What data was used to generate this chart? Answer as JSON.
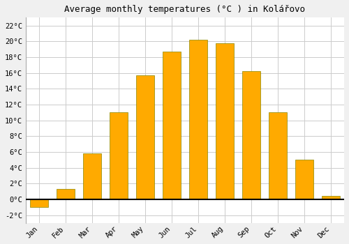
{
  "months": [
    "Jan",
    "Feb",
    "Mar",
    "Apr",
    "May",
    "Jun",
    "Jul",
    "Aug",
    "Sep",
    "Oct",
    "Nov",
    "Dec"
  ],
  "temperatures": [
    -1.0,
    1.3,
    5.8,
    11.0,
    15.7,
    18.7,
    20.2,
    19.8,
    16.2,
    11.0,
    5.0,
    0.4
  ],
  "bar_color": "#FFAA00",
  "bar_edge_color": "#888800",
  "title": "Average monthly temperatures (°C ) in Kolářovo",
  "ylim": [
    -3,
    23
  ],
  "yticks": [
    -2,
    0,
    2,
    4,
    6,
    8,
    10,
    12,
    14,
    16,
    18,
    20,
    22
  ],
  "grid_color": "#cccccc",
  "plot_bg_color": "#ffffff",
  "fig_bg_color": "#f0f0f0",
  "title_fontsize": 9,
  "tick_fontsize": 7.5,
  "bar_width": 0.7
}
